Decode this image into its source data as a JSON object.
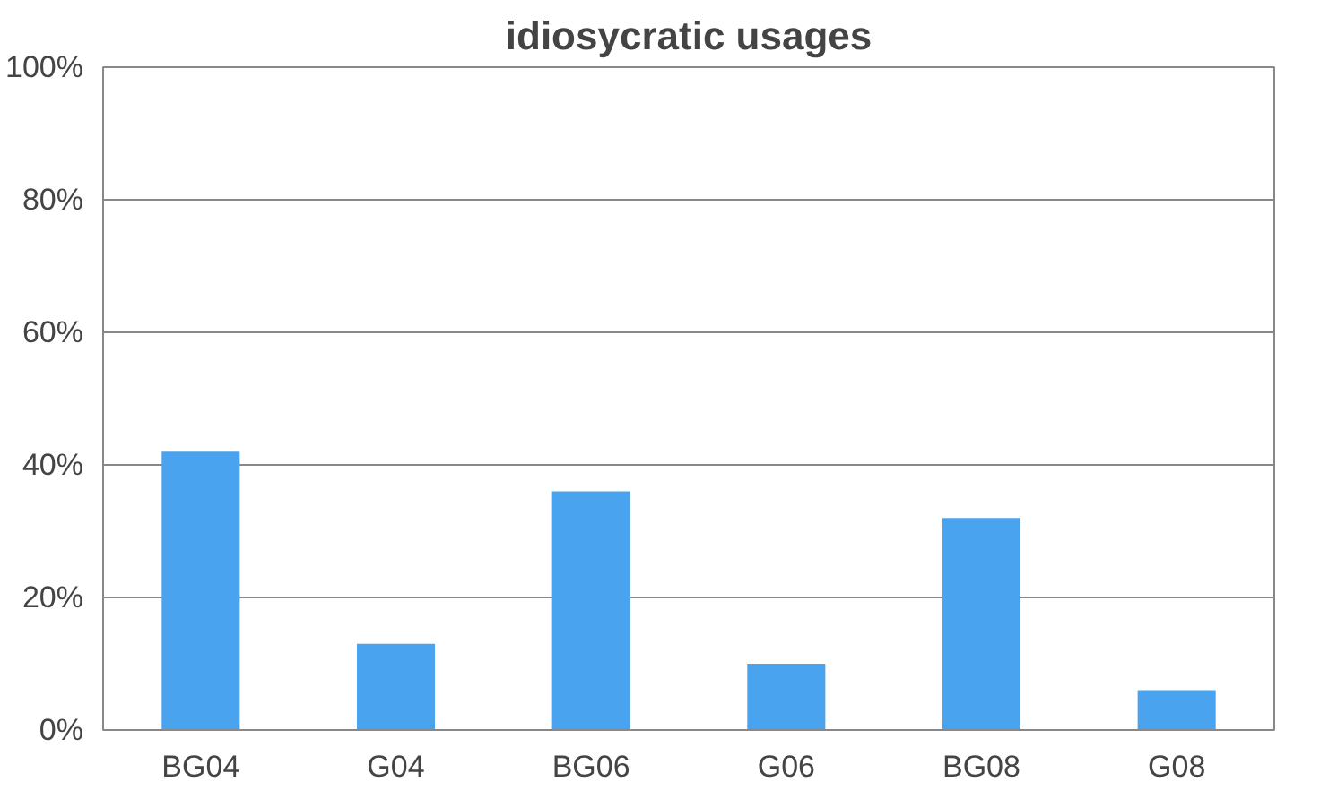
{
  "chart_data": {
    "type": "bar",
    "title": "idiosycratic usages",
    "categories": [
      "BG04",
      "G04",
      "BG06",
      "G06",
      "BG08",
      "G08"
    ],
    "values": [
      42,
      13,
      36,
      10,
      32,
      6
    ],
    "color": "#4aa3ee",
    "ylim": [
      0,
      100
    ],
    "yticks": [
      {
        "value": 0,
        "label": "0%"
      },
      {
        "value": 20,
        "label": "20%"
      },
      {
        "value": 40,
        "label": "40%"
      },
      {
        "value": 60,
        "label": "60%"
      },
      {
        "value": 80,
        "label": "80%"
      },
      {
        "value": 100,
        "label": "100%"
      }
    ],
    "grid": "y"
  }
}
